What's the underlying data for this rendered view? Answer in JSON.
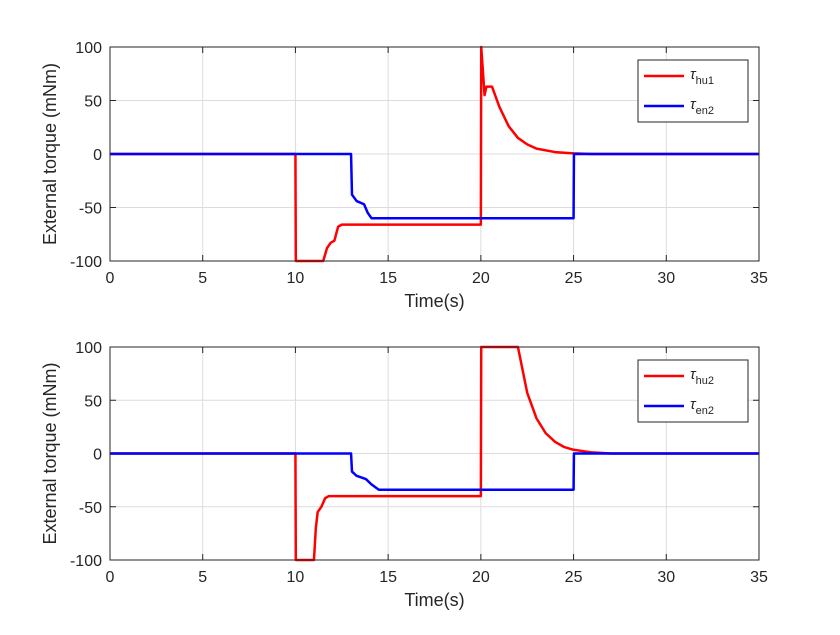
{
  "chart_data": [
    {
      "type": "line",
      "xlabel": "Time(s)",
      "ylabel": "External torque (mNm)",
      "xlim": [
        0,
        35
      ],
      "ylim": [
        -100,
        100
      ],
      "xticks": [
        0,
        5,
        10,
        15,
        20,
        25,
        30,
        35
      ],
      "yticks": [
        -100,
        -50,
        0,
        50,
        100
      ],
      "grid": true,
      "legend_placement": "top-right",
      "series": [
        {
          "name": "hu1",
          "color": "#ff0000",
          "points": [
            [
              0,
              0
            ],
            [
              10,
              0
            ],
            [
              10.02,
              -100
            ],
            [
              11.5,
              -100
            ],
            [
              11.7,
              -88
            ],
            [
              11.9,
              -83
            ],
            [
              12.1,
              -81
            ],
            [
              12.3,
              -68
            ],
            [
              12.5,
              -66
            ],
            [
              20,
              -66
            ],
            [
              20.02,
              100
            ],
            [
              20.2,
              55
            ],
            [
              20.3,
              63
            ],
            [
              20.6,
              63
            ],
            [
              21,
              44
            ],
            [
              21.5,
              26
            ],
            [
              22,
              15
            ],
            [
              22.5,
              9
            ],
            [
              23,
              5
            ],
            [
              24,
              1.8
            ],
            [
              25,
              0.6
            ],
            [
              26,
              0
            ],
            [
              35,
              0
            ]
          ]
        },
        {
          "name": "en2",
          "color": "#0000ff",
          "points": [
            [
              0,
              0
            ],
            [
              13,
              0
            ],
            [
              13.05,
              -38
            ],
            [
              13.3,
              -44
            ],
            [
              13.7,
              -47
            ],
            [
              13.9,
              -55
            ],
            [
              14.1,
              -60
            ],
            [
              25,
              -60
            ],
            [
              25.02,
              0
            ],
            [
              35,
              0
            ]
          ]
        }
      ]
    },
    {
      "type": "line",
      "xlabel": "Time(s)",
      "ylabel": "External torque (mNm)",
      "xlim": [
        0,
        35
      ],
      "ylim": [
        -100,
        100
      ],
      "xticks": [
        0,
        5,
        10,
        15,
        20,
        25,
        30,
        35
      ],
      "yticks": [
        -100,
        -50,
        0,
        50,
        100
      ],
      "grid": true,
      "legend_placement": "top-right",
      "series": [
        {
          "name": "hu2",
          "color": "#ff0000",
          "points": [
            [
              0,
              0
            ],
            [
              10,
              0
            ],
            [
              10.02,
              -100
            ],
            [
              11,
              -100
            ],
            [
              11.1,
              -70
            ],
            [
              11.2,
              -55
            ],
            [
              11.4,
              -50
            ],
            [
              11.6,
              -42
            ],
            [
              11.8,
              -40
            ],
            [
              20,
              -40
            ],
            [
              20.02,
              100
            ],
            [
              22,
              100
            ],
            [
              22.5,
              57
            ],
            [
              23,
              33
            ],
            [
              23.5,
              19
            ],
            [
              24,
              11
            ],
            [
              24.5,
              6
            ],
            [
              25,
              3.5
            ],
            [
              26,
              1
            ],
            [
              27,
              0
            ],
            [
              35,
              0
            ]
          ]
        },
        {
          "name": "en2",
          "color": "#0000ff",
          "points": [
            [
              0,
              0
            ],
            [
              13,
              0
            ],
            [
              13.05,
              -17
            ],
            [
              13.3,
              -21
            ],
            [
              13.8,
              -24
            ],
            [
              14.1,
              -29
            ],
            [
              14.5,
              -34
            ],
            [
              25,
              -34
            ],
            [
              25.02,
              0
            ],
            [
              35,
              0
            ]
          ]
        }
      ]
    }
  ],
  "legend_symbol": "τ"
}
